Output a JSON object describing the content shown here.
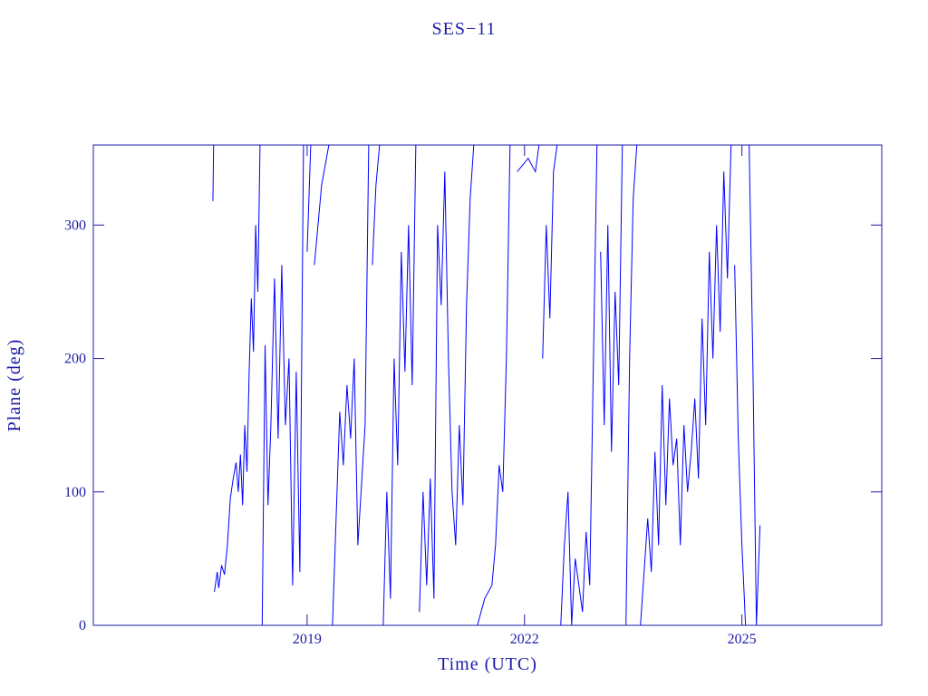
{
  "chart_data": {
    "type": "line",
    "title": "SES−11",
    "x_label": "Time (UTC)",
    "y_label": "Plane (deg)",
    "color": "#0000ff",
    "xlim": [
      2016.05,
      2026.93
    ],
    "ylim": [
      0,
      360
    ],
    "xticks": [
      2019,
      2022,
      2025
    ],
    "yticks": [
      0,
      100,
      200,
      300
    ],
    "x": [
      2017.7,
      2017.71,
      2017.715,
      2017.72,
      2017.76,
      2017.78,
      2017.82,
      2017.86,
      2017.9,
      2017.94,
      2017.98,
      2018.02,
      2018.05,
      2018.08,
      2018.11,
      2018.14,
      2018.17,
      2018.2,
      2018.23,
      2018.26,
      2018.29,
      2018.32,
      2018.35,
      2018.36,
      2018.38,
      2018.42,
      2018.46,
      2018.5,
      2018.55,
      2018.6,
      2018.65,
      2018.7,
      2018.75,
      2018.8,
      2018.85,
      2018.9,
      2018.95,
      2018.97,
      2019.0,
      2019.05,
      2019.07,
      2019.1,
      2019.2,
      2019.3,
      2019.32,
      2019.35,
      2019.45,
      2019.5,
      2019.55,
      2019.6,
      2019.65,
      2019.7,
      2019.8,
      2019.85,
      2019.87,
      2019.9,
      2019.95,
      2020.0,
      2020.02,
      2020.05,
      2020.1,
      2020.15,
      2020.2,
      2020.25,
      2020.3,
      2020.35,
      2020.4,
      2020.45,
      2020.5,
      2020.52,
      2020.55,
      2020.6,
      2020.65,
      2020.7,
      2020.75,
      2020.8,
      2020.85,
      2020.9,
      2020.95,
      2021.0,
      2021.05,
      2021.1,
      2021.15,
      2021.2,
      2021.25,
      2021.3,
      2021.32,
      2021.35,
      2021.45,
      2021.55,
      2021.6,
      2021.65,
      2021.7,
      2021.75,
      2021.8,
      2021.82,
      2021.9,
      2022.05,
      2022.15,
      2022.2,
      2022.22,
      2022.25,
      2022.3,
      2022.35,
      2022.4,
      2022.45,
      2022.47,
      2022.5,
      2022.55,
      2022.6,
      2022.65,
      2022.7,
      2022.8,
      2022.85,
      2022.9,
      2023.0,
      2023.02,
      2023.05,
      2023.1,
      2023.15,
      2023.2,
      2023.25,
      2023.3,
      2023.35,
      2023.37,
      2023.4,
      2023.45,
      2023.5,
      2023.55,
      2023.57,
      2023.6,
      2023.7,
      2023.75,
      2023.8,
      2023.85,
      2023.9,
      2023.95,
      2024.0,
      2024.05,
      2024.1,
      2024.15,
      2024.2,
      2024.25,
      2024.3,
      2024.35,
      2024.4,
      2024.45,
      2024.5,
      2024.55,
      2024.6,
      2024.65,
      2024.7,
      2024.75,
      2024.8,
      2024.85,
      2024.87,
      2024.9,
      2024.95,
      2025.0,
      2025.05,
      2025.07,
      2025.1,
      2025.15,
      2025.2,
      2025.25
    ],
    "values": [
      318,
      360,
      null,
      25,
      40,
      28,
      45,
      38,
      60,
      95,
      110,
      122,
      100,
      128,
      90,
      150,
      115,
      190,
      245,
      205,
      300,
      250,
      360,
      null,
      0,
      210,
      90,
      150,
      260,
      140,
      270,
      150,
      200,
      30,
      190,
      40,
      360,
      null,
      280,
      360,
      null,
      270,
      330,
      360,
      null,
      0,
      160,
      120,
      180,
      140,
      200,
      60,
      150,
      360,
      null,
      270,
      330,
      360,
      null,
      0,
      100,
      20,
      200,
      120,
      280,
      190,
      300,
      180,
      360,
      null,
      10,
      100,
      30,
      110,
      20,
      300,
      240,
      340,
      200,
      100,
      60,
      150,
      90,
      240,
      320,
      360,
      null,
      0,
      20,
      30,
      60,
      120,
      100,
      200,
      360,
      null,
      340,
      350,
      340,
      360,
      null,
      200,
      300,
      230,
      340,
      360,
      null,
      0,
      60,
      100,
      0,
      50,
      10,
      70,
      30,
      360,
      null,
      280,
      150,
      300,
      130,
      250,
      180,
      360,
      null,
      0,
      200,
      320,
      360,
      null,
      0,
      80,
      40,
      130,
      60,
      180,
      90,
      170,
      120,
      140,
      60,
      150,
      100,
      130,
      170,
      110,
      230,
      150,
      280,
      200,
      300,
      220,
      340,
      260,
      360,
      null,
      270,
      140,
      60,
      0,
      null,
      360,
      200,
      0,
      75
    ]
  }
}
